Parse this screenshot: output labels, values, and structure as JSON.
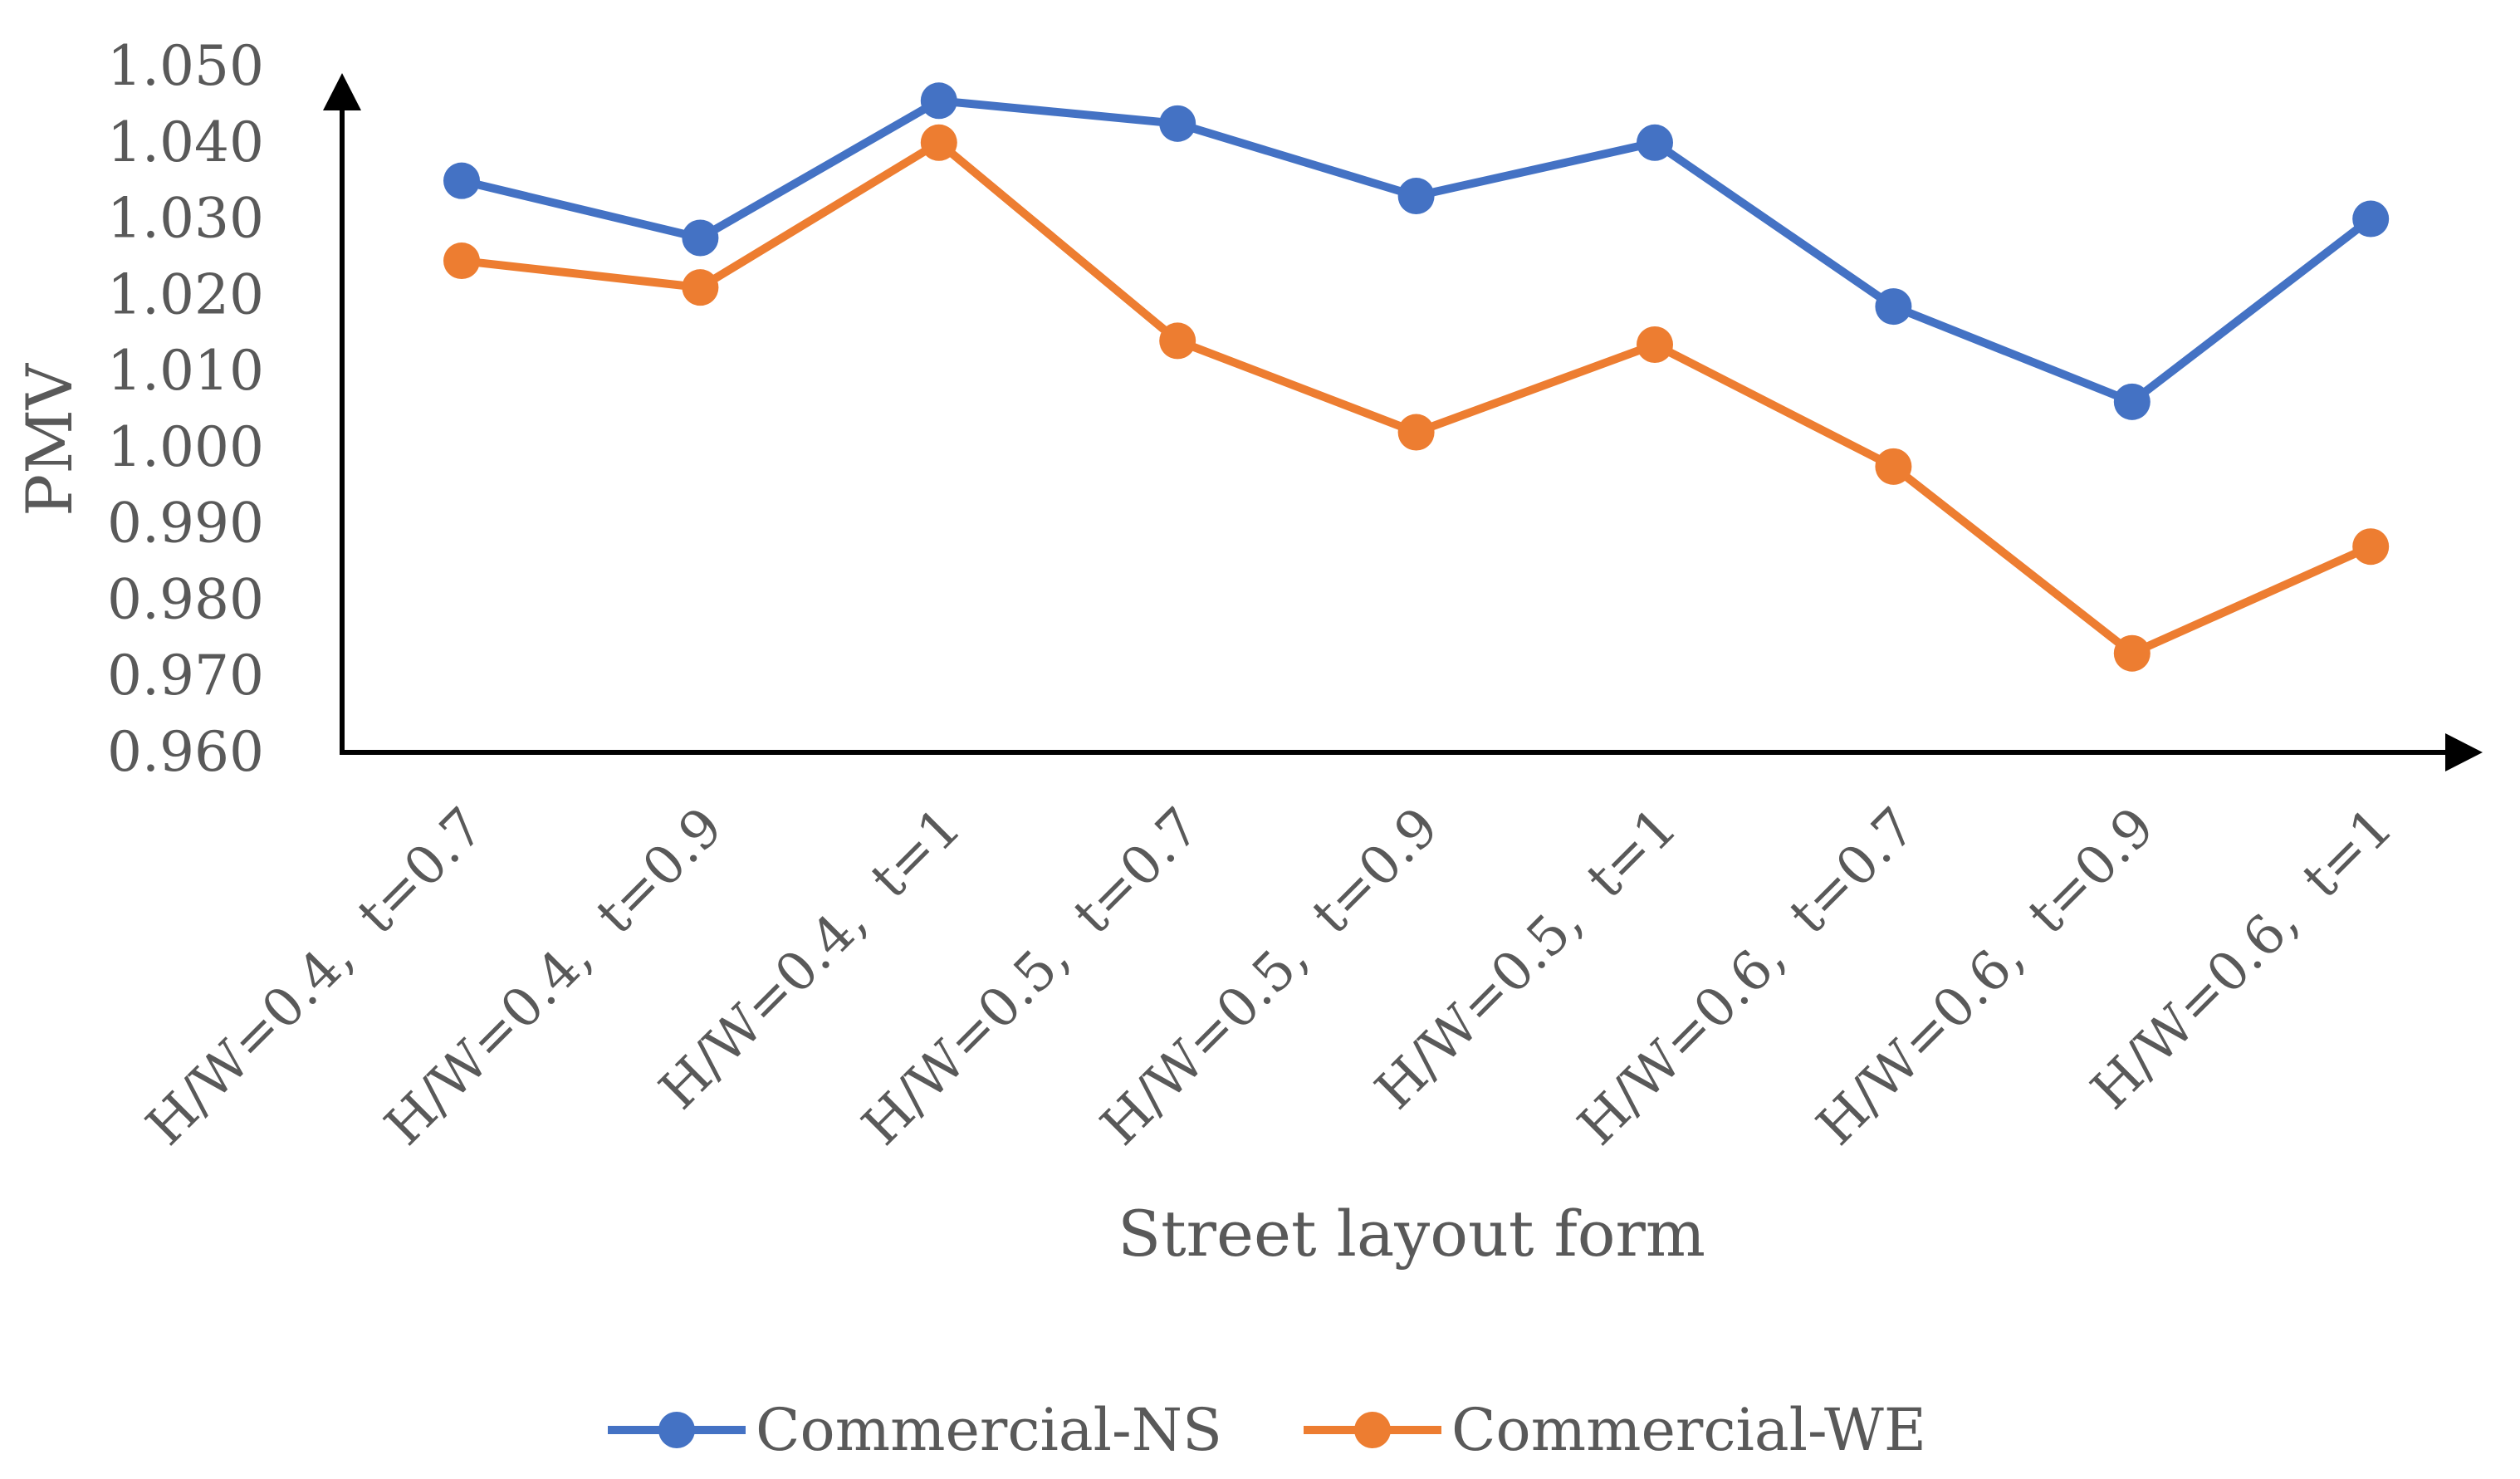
{
  "chart_data": {
    "type": "line",
    "title": "",
    "xlabel": "Street layout form",
    "ylabel": "PMV",
    "ylim": [
      0.96,
      1.05
    ],
    "yticks": [
      "0.960",
      "0.970",
      "0.980",
      "0.990",
      "1.000",
      "1.010",
      "1.020",
      "1.030",
      "1.040",
      "1.050"
    ],
    "categories": [
      "H/W=0.4,  t=0.7",
      "H/W=0.4,  t=0.9",
      "H/W=0.4,  t=1",
      "H/W=0.5,  t=0.7",
      "H/W=0.5,  t=0.9",
      "H/W=0.5,  t=1",
      "H/W=0.6,  t=0.7",
      "H/W=0.6,  t=0.9",
      "H/W=0.6,  t=1"
    ],
    "series": [
      {
        "name": "Commercial-NS",
        "color": "#4472C4",
        "values": [
          1.035,
          1.0275,
          1.0455,
          1.0425,
          1.033,
          1.04,
          1.0185,
          1.006,
          1.03
        ]
      },
      {
        "name": "Commercial-WE",
        "color": "#ED7D31",
        "values": [
          1.0245,
          1.021,
          1.04,
          1.014,
          1.002,
          1.0135,
          0.9975,
          0.973,
          0.987
        ]
      }
    ],
    "legend": "bottom",
    "grid": false
  }
}
